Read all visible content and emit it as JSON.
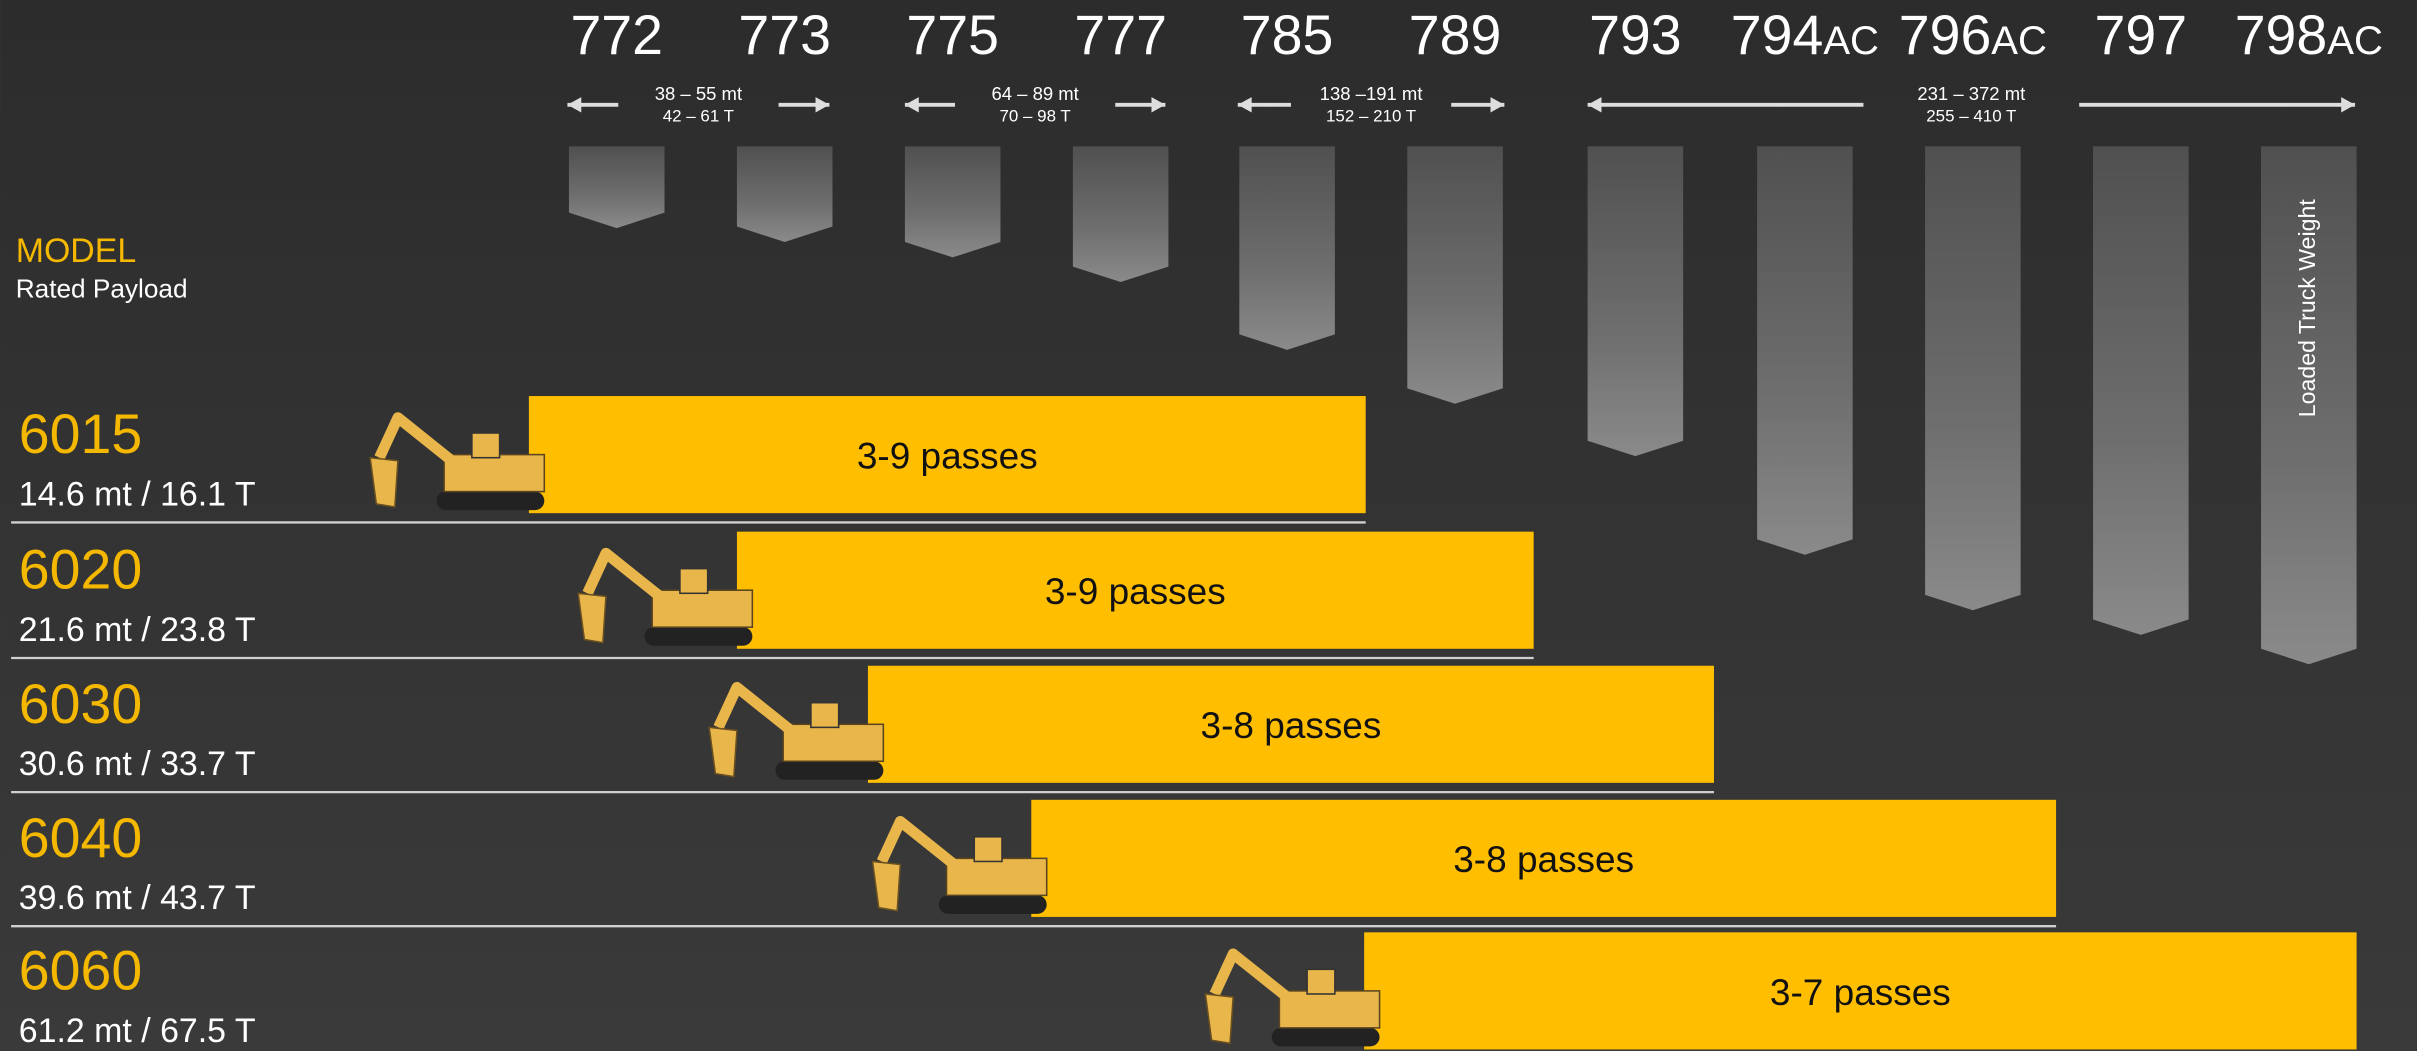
{
  "header": {
    "model_label": "MODEL",
    "payload_label": "Rated Payload"
  },
  "trucks": [
    {
      "number": "772"
    },
    {
      "number": "773"
    },
    {
      "number": "775"
    },
    {
      "number": "777"
    },
    {
      "number": "785"
    },
    {
      "number": "789"
    },
    {
      "number": "793"
    },
    {
      "number": "794",
      "suffix": "AC"
    },
    {
      "number": "796",
      "suffix": "AC"
    },
    {
      "number": "797"
    },
    {
      "number": "798",
      "suffix": "AC"
    }
  ],
  "ranges": [
    {
      "metric": "38 – 55 mt",
      "short": "42 – 61 T"
    },
    {
      "metric": "64 – 89 mt",
      "short": "70 – 98 T"
    },
    {
      "metric": "138 –191 mt",
      "short": "152 – 210 T"
    },
    {
      "metric": "231 – 372 mt",
      "short": "255 – 410 T"
    }
  ],
  "vertical_label": "Loaded Truck Weight",
  "excavators": [
    {
      "model": "6015",
      "payload": "14.6 mt / 16.1 T",
      "passes": "3-9 passes"
    },
    {
      "model": "6020",
      "payload": "21.6 mt / 23.8 T",
      "passes": "3-9 passes"
    },
    {
      "model": "6030",
      "payload": "30.6 mt / 33.7 T",
      "passes": "3-8 passes"
    },
    {
      "model": "6040",
      "payload": "39.6 mt / 43.7 T",
      "passes": "3-8 passes"
    },
    {
      "model": "6060",
      "payload": "61.2 mt / 67.5 T",
      "passes": "3-7 passes"
    }
  ]
}
